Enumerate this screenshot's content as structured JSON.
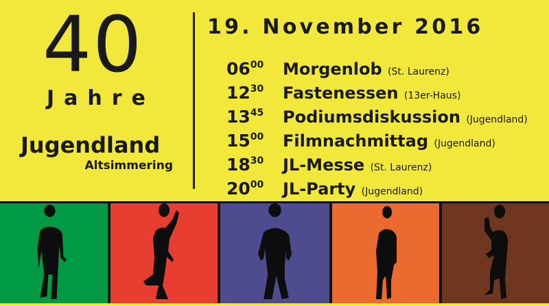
{
  "left": {
    "number": "40",
    "years": "Jahre",
    "name": "Jugendland",
    "place": "Altsimmering"
  },
  "date": "19. November 2016",
  "schedule": [
    {
      "hour": "06",
      "minute": "00",
      "event": "Morgenlob",
      "location": "(St. Laurenz)"
    },
    {
      "hour": "12",
      "minute": "30",
      "event": "Fastenessen",
      "location": "(13er-Haus)"
    },
    {
      "hour": "13",
      "minute": "45",
      "event": "Podiumsdiskussion",
      "location": "(Jugendland)"
    },
    {
      "hour": "15",
      "minute": "00",
      "event": "Filmnachmittag",
      "location": "(Jugendland)"
    },
    {
      "hour": "18",
      "minute": "30",
      "event": "JL-Messe",
      "location": "(St. Laurenz)"
    },
    {
      "hour": "20",
      "minute": "00",
      "event": "JL-Party",
      "location": "(Jugendland)"
    }
  ],
  "colors": {
    "background": "#f1e83b",
    "panels": [
      "#009a44",
      "#e83e32",
      "#4f4b8f",
      "#eb6a2f",
      "#6f3720"
    ],
    "text": "#1a1a1a"
  },
  "icons": [
    "dancer-silhouette-icon"
  ]
}
